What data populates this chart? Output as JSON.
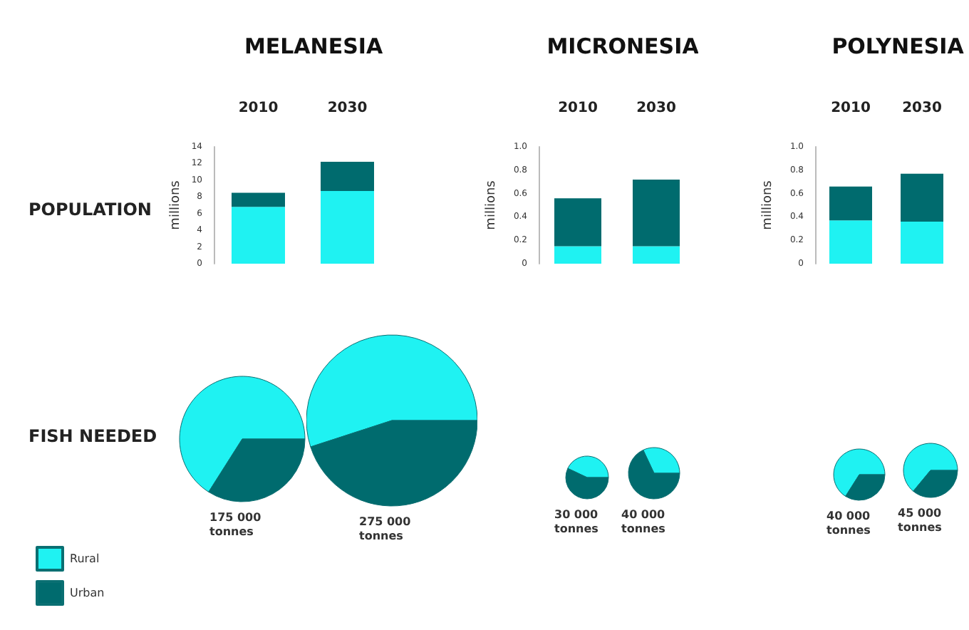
{
  "chart_data": [
    {
      "type": "bar",
      "title": "MELANESIA",
      "categories": [
        "2010",
        "2030"
      ],
      "ylabel": "millions",
      "stacked": true,
      "grid": false,
      "annotations": [
        "POPULATION"
      ],
      "series": [
        {
          "color": "#1ff2f2",
          "values": [
            6.8,
            8.7
          ]
        },
        {
          "color": "#006b6e",
          "values": [
            1.7,
            3.5
          ]
        }
      ],
      "ylim": [
        0,
        14
      ],
      "yticks": [
        0,
        2,
        4,
        6,
        8,
        10,
        12,
        14
      ]
    },
    {
      "type": "bar",
      "title": "MICRONESIA",
      "categories": [
        "2010",
        "2030"
      ],
      "ylabel": "millions",
      "stacked": true,
      "grid": false,
      "series": [
        {
          "color": "#1ff2f2",
          "values": [
            0.15,
            0.15
          ]
        },
        {
          "color": "#006b6e",
          "values": [
            0.41,
            0.57
          ]
        }
      ],
      "ylim": [
        0,
        1
      ],
      "yticks": [
        0,
        0.2,
        0.4,
        0.6,
        0.8,
        {
          "value": 1,
          "label": "1.0"
        }
      ]
    },
    {
      "type": "bar",
      "title": "POLYNESIA",
      "categories": [
        "2010",
        "2030"
      ],
      "ylabel": "millions",
      "stacked": true,
      "grid": false,
      "series": [
        {
          "color": "#1ff2f2",
          "values": [
            0.37,
            0.36
          ]
        },
        {
          "color": "#006b6e",
          "values": [
            0.29,
            0.41
          ]
        }
      ],
      "ylim": [
        0,
        1
      ],
      "yticks": [
        0,
        0.2,
        0.4,
        0.6,
        0.8,
        {
          "value": 1,
          "label": "1.0"
        }
      ]
    },
    {
      "type": "pie",
      "categories": [
        "Rural",
        "Urban"
      ],
      "values": [
        66,
        34
      ],
      "colors": [
        "#1ff2f2",
        "#006b6e"
      ],
      "legend": "bottom left",
      "annotations": [
        "FISH NEEDED",
        "175 000 tonnes"
      ]
    },
    {
      "type": "pie",
      "categories": [
        null,
        null
      ],
      "values": [
        55,
        45
      ],
      "colors": [
        "#1ff2f2",
        "#006b6e"
      ],
      "annotations": [
        "275 000 tonnes"
      ]
    },
    {
      "type": "pie",
      "categories": [
        null,
        null
      ],
      "values": [
        43,
        57
      ],
      "colors": [
        "#1ff2f2",
        "#006b6e"
      ],
      "annotations": [
        "30 000 tonnes"
      ]
    },
    {
      "type": "pie",
      "categories": [
        null,
        null
      ],
      "values": [
        32,
        68
      ],
      "colors": [
        "#1ff2f2",
        "#006b6e"
      ],
      "annotations": [
        "40 000 tonnes"
      ]
    },
    {
      "type": "pie",
      "categories": [
        null,
        null
      ],
      "values": [
        66,
        34
      ],
      "colors": [
        "#1ff2f2",
        "#006b6e"
      ],
      "annotations": [
        "40 000 tonnes"
      ]
    },
    {
      "type": "pie",
      "categories": [
        null,
        null
      ],
      "values": [
        64,
        36
      ],
      "colors": [
        "#1ff2f2",
        "#006b6e"
      ],
      "annotations": [
        "45 000 tonnes"
      ]
    }
  ]
}
